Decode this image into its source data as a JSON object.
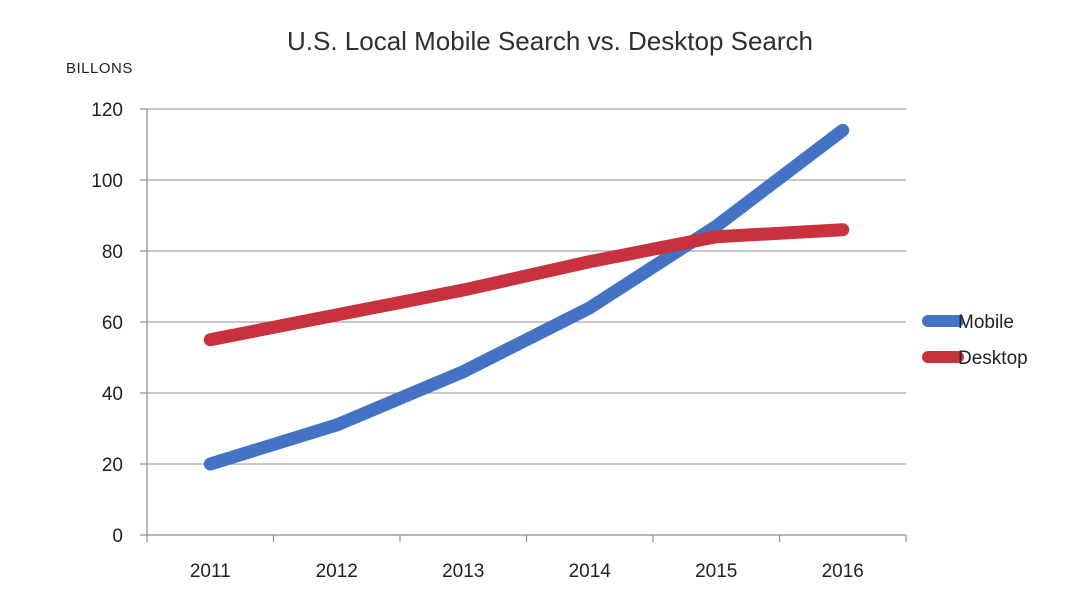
{
  "chart_data": {
    "type": "line",
    "title": "U.S. Local Mobile Search vs. Desktop Search",
    "ylabel": "BILLONS",
    "xlabel": "",
    "categories": [
      "2011",
      "2012",
      "2013",
      "2014",
      "2015",
      "2016"
    ],
    "ylim": [
      0,
      120
    ],
    "yticks": [
      0,
      20,
      40,
      60,
      80,
      100,
      120
    ],
    "grid": true,
    "legend": "right",
    "series": [
      {
        "name": "Mobile",
        "color": "#4472C4",
        "values": [
          20,
          31,
          46,
          64,
          87,
          114
        ]
      },
      {
        "name": "Desktop",
        "color": "#C8323F",
        "values": [
          55,
          62,
          69,
          77,
          84,
          86
        ]
      }
    ]
  }
}
